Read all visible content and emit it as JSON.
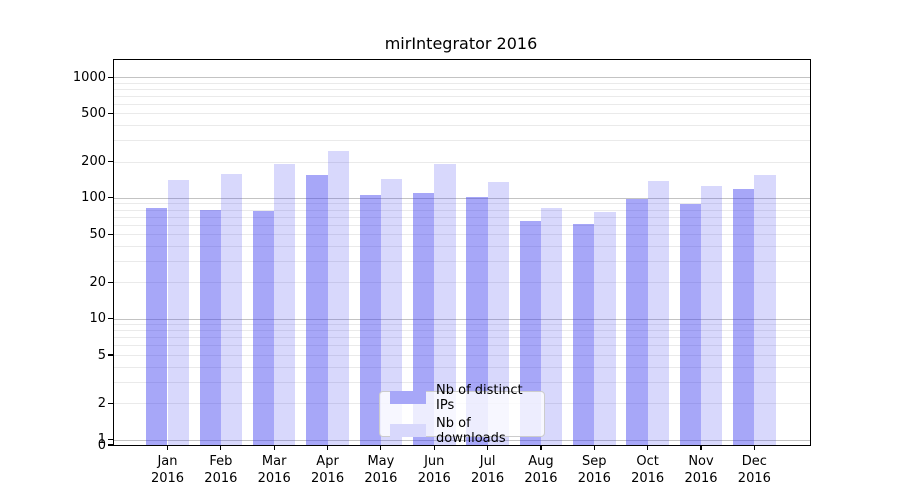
{
  "chart_data": {
    "type": "bar",
    "title": "mirIntegrator 2016",
    "categories": [
      "Jan",
      "Feb",
      "Mar",
      "Apr",
      "May",
      "Jun",
      "Jul",
      "Aug",
      "Sep",
      "Oct",
      "Nov",
      "Dec"
    ],
    "year_label": "2016",
    "series": [
      {
        "name": "Nb of distinct IPs",
        "legend_color": "#a7a7f8",
        "fill": "rgba(60,60,240,0.45)",
        "values": [
          82,
          80,
          78,
          155,
          105,
          110,
          101,
          64,
          61,
          98,
          89,
          118
        ]
      },
      {
        "name": "Nb of downloads",
        "legend_color": "#d8d8fc",
        "fill": "rgba(60,60,240,0.20)",
        "values": [
          140,
          157,
          190,
          245,
          143,
          190,
          135,
          83,
          77,
          139,
          125,
          155
        ]
      }
    ],
    "xlabel": "",
    "ylabel": "",
    "yscale": "symlog",
    "y_ticks": [
      0,
      1,
      2,
      5,
      10,
      20,
      50,
      100,
      200,
      500,
      1000
    ],
    "ylim": [
      0,
      1400
    ],
    "grid": "horizontal, major (powers of 10) darker + minor lighter",
    "legend_position": "lower center",
    "axis_color": "#000000",
    "major_grid_color": "#c3c3c3",
    "minor_grid_color": "#eaeaea"
  }
}
